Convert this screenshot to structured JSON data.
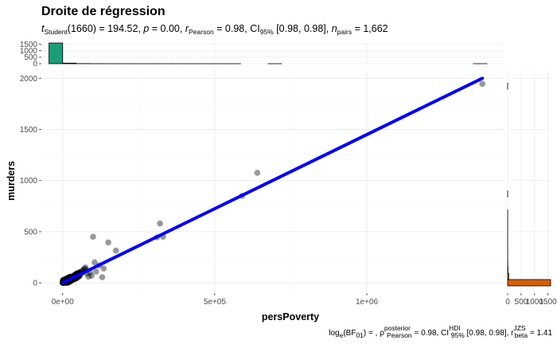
{
  "chart_data": {
    "type": "scatter",
    "title": "Droite de régression",
    "subtitle": {
      "t_label": "t",
      "t_sub": "Student",
      "t_value": "(1660) = 194.52, ",
      "p_label": "p",
      "p_value": " = 0.00, ",
      "r_label": "r",
      "r_sub": "Pearson",
      "r_value": " = 0.98, CI",
      "ci_sub": "95%",
      "ci_value": " [0.98, 0.98], ",
      "n_label": "n",
      "n_sub": "pairs",
      "n_value": " = 1,662"
    },
    "caption": {
      "bf_label": "log",
      "bf_sub": "e",
      "bf_text": "(BF",
      "bf_sub2": "01",
      "bf_value": ") = , ",
      "rho_label": "ρ",
      "rho_sup": "posterior",
      "rho_sub": "Pearson",
      "rho_value": " = 0.98, CI",
      "ci_sup": "HDI",
      "ci_sub": "95%",
      "ci_value": " [0.98, 0.98], r",
      "r_sup": "JZS",
      "r_sub": "beta",
      "r_value": " = 1.41"
    },
    "xlabel": "persPoverty",
    "ylabel": "murders",
    "xlim": [
      -70000,
      1450000
    ],
    "ylim": [
      -100,
      2080
    ],
    "x_ticks": [
      0,
      500000,
      1000000
    ],
    "x_tick_labels": [
      "0e+00",
      "5e+05",
      "1e+06"
    ],
    "y_ticks": [
      0,
      500,
      1000,
      1500,
      2000
    ],
    "y_tick_labels": [
      "0",
      "500",
      "1000",
      "1500",
      "2000"
    ],
    "regression_line": {
      "x": [
        0,
        1380000
      ],
      "y": [
        0,
        2000
      ],
      "color": "#0000ff"
    },
    "point_color": "#000000",
    "points": [
      {
        "x": 1000,
        "y": 2
      },
      {
        "x": 2000,
        "y": 5
      },
      {
        "x": 3000,
        "y": 3
      },
      {
        "x": 4000,
        "y": 8
      },
      {
        "x": 5000,
        "y": 10
      },
      {
        "x": 6000,
        "y": 4
      },
      {
        "x": 8000,
        "y": 15
      },
      {
        "x": 10000,
        "y": 12
      },
      {
        "x": 12000,
        "y": 20
      },
      {
        "x": 15000,
        "y": 18
      },
      {
        "x": 18000,
        "y": 25
      },
      {
        "x": 20000,
        "y": 30
      },
      {
        "x": 22000,
        "y": 22
      },
      {
        "x": 25000,
        "y": 40
      },
      {
        "x": 28000,
        "y": 35
      },
      {
        "x": 30000,
        "y": 50
      },
      {
        "x": 32000,
        "y": 45
      },
      {
        "x": 35000,
        "y": 60
      },
      {
        "x": 38000,
        "y": 55
      },
      {
        "x": 40000,
        "y": 70
      },
      {
        "x": 42000,
        "y": 80
      },
      {
        "x": 45000,
        "y": 65
      },
      {
        "x": 48000,
        "y": 90
      },
      {
        "x": 50000,
        "y": 75
      },
      {
        "x": 55000,
        "y": 100
      },
      {
        "x": 58000,
        "y": 85
      },
      {
        "x": 60000,
        "y": 110
      },
      {
        "x": 62000,
        "y": 95
      },
      {
        "x": 65000,
        "y": 120
      },
      {
        "x": 68000,
        "y": 105
      },
      {
        "x": 70000,
        "y": 130
      },
      {
        "x": 72000,
        "y": 140
      },
      {
        "x": 75000,
        "y": 150
      },
      {
        "x": 78000,
        "y": 125
      },
      {
        "x": 80000,
        "y": 90
      },
      {
        "x": 85000,
        "y": 60
      },
      {
        "x": 90000,
        "y": 100
      },
      {
        "x": 95000,
        "y": 70
      },
      {
        "x": 100000,
        "y": 450
      },
      {
        "x": 105000,
        "y": 200
      },
      {
        "x": 110000,
        "y": 110
      },
      {
        "x": 120000,
        "y": 170
      },
      {
        "x": 130000,
        "y": 55
      },
      {
        "x": 135000,
        "y": 140
      },
      {
        "x": 150000,
        "y": 395
      },
      {
        "x": 175000,
        "y": 315
      },
      {
        "x": 310000,
        "y": 445
      },
      {
        "x": 320000,
        "y": 580
      },
      {
        "x": 330000,
        "y": 450
      },
      {
        "x": 590000,
        "y": 850
      },
      {
        "x": 640000,
        "y": 1075
      },
      {
        "x": 1380000,
        "y": 1945
      }
    ],
    "dense_cluster": {
      "count": 220,
      "x_max": 60000,
      "y_max": 90
    },
    "top_histogram": {
      "color": "#1b9e77",
      "counts": [
        1600,
        45,
        10,
        5,
        3,
        2,
        1,
        1,
        1,
        1,
        1,
        1,
        1,
        1,
        0,
        0,
        1,
        0,
        0,
        0,
        0,
        0,
        0,
        0,
        0,
        0,
        0,
        0,
        0,
        0,
        0,
        1
      ],
      "bin_start": -45000,
      "bin_width": 45000,
      "y_ticks": [
        0,
        500,
        1000,
        1500
      ],
      "y_tick_labels": [
        "0",
        "500",
        "1000",
        "1500"
      ],
      "ymax": 1600
    },
    "right_histogram": {
      "color": "#d95f02",
      "counts": [
        1600,
        40,
        12,
        5,
        3,
        2,
        1,
        1,
        1,
        1,
        1,
        1,
        0,
        0,
        1,
        0,
        0,
        0,
        0,
        0,
        0,
        0,
        0,
        0,
        0,
        0,
        0,
        0,
        0,
        0,
        0,
        1
      ],
      "bin_start": -30,
      "bin_width": 62,
      "x_ticks": [
        0,
        500,
        1000,
        1500
      ],
      "x_tick_labels": [
        "0",
        "500",
        "1000",
        "1500"
      ],
      "xmax": 1600
    }
  }
}
